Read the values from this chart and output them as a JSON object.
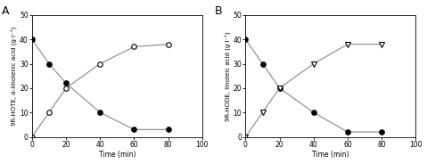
{
  "panel_A": {
    "label": "A",
    "xlabel": "Time (min)",
    "ylabel": "9R-HOTE, α-linolenic acid (g l⁻¹)",
    "xlim": [
      0,
      100
    ],
    "ylim": [
      0,
      50
    ],
    "xticks": [
      0,
      20,
      40,
      60,
      80,
      100
    ],
    "yticks": [
      0,
      10,
      20,
      30,
      40,
      50
    ],
    "series1": {
      "x": [
        0,
        10,
        20,
        40,
        60,
        80
      ],
      "y": [
        40,
        30,
        22,
        10,
        3,
        3
      ],
      "marker": "o",
      "filled": true
    },
    "series2": {
      "x": [
        0,
        10,
        20,
        40,
        60,
        80
      ],
      "y": [
        0,
        10,
        20,
        30,
        37,
        38
      ],
      "marker": "o",
      "filled": false
    }
  },
  "panel_B": {
    "label": "B",
    "xlabel": "Time (min)",
    "ylabel": "9R-HODE, linoleic acid (g l⁻¹)",
    "xlim": [
      0,
      100
    ],
    "ylim": [
      0,
      50
    ],
    "xticks": [
      0,
      20,
      40,
      60,
      80,
      100
    ],
    "yticks": [
      0,
      10,
      20,
      30,
      40,
      50
    ],
    "series1": {
      "x": [
        0,
        10,
        20,
        40,
        60,
        80
      ],
      "y": [
        40,
        30,
        20,
        10,
        2,
        2
      ],
      "marker": "o",
      "filled": true
    },
    "series2": {
      "x": [
        0,
        10,
        20,
        40,
        60,
        80
      ],
      "y": [
        0,
        10,
        20,
        30,
        38,
        38
      ],
      "marker": "v",
      "filled": false
    }
  },
  "line_color": "#888888",
  "marker_color": "black",
  "background_color": "#ffffff",
  "figure_background": "#ffffff",
  "markersize": 4,
  "linewidth": 0.8,
  "tick_fontsize": 5.5,
  "label_fontsize": 5.5,
  "panel_label_fontsize": 9
}
